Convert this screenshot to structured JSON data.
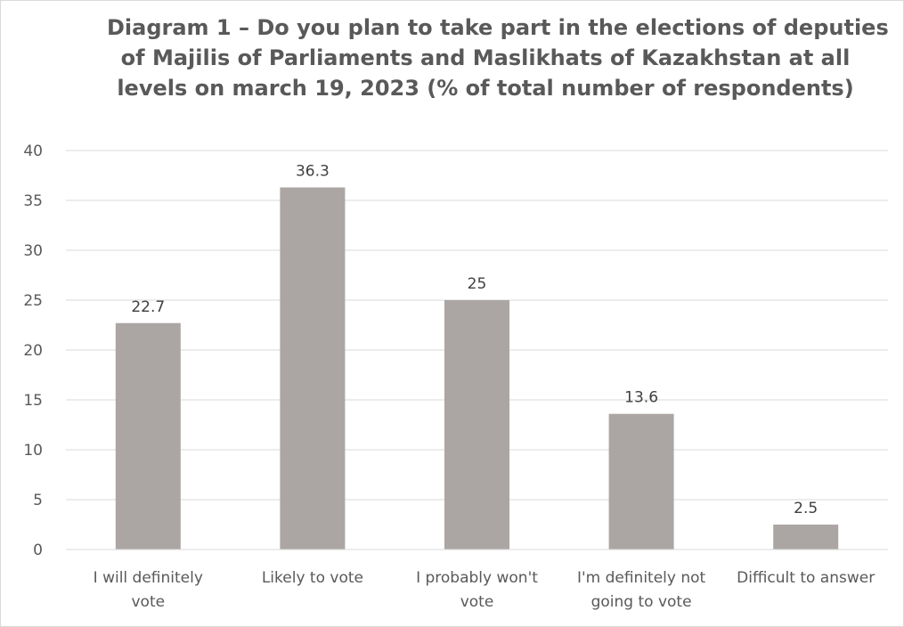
{
  "chart_data": {
    "type": "bar",
    "title_lines": [
      "Diagram 1 –  Do you plan to take part in the elections of deputies",
      "of Majilis of Parliaments and Maslikhats of Kazakhstan at all",
      "levels on march 19, 2023 (% of total number of respondents)"
    ],
    "categories": [
      [
        "I will definitely",
        "vote"
      ],
      [
        "Likely to vote"
      ],
      [
        "I probably won't",
        "vote"
      ],
      [
        "I'm definitely not",
        "going to vote"
      ],
      [
        "Difficult to answer"
      ]
    ],
    "values": [
      22.7,
      36.3,
      25,
      13.6,
      2.5
    ],
    "data_labels": [
      "22.7",
      "36.3",
      "25",
      "13.6",
      "2.5"
    ],
    "ylim": [
      0,
      40
    ],
    "yticks": [
      "0",
      "5",
      "10",
      "15",
      "20",
      "25",
      "30",
      "35",
      "40"
    ],
    "grid": true,
    "legend": "none",
    "bar_color": "#aba6a4",
    "grid_color": "#d9d9d9",
    "text_color": "#595959",
    "label_color": "#404040"
  }
}
